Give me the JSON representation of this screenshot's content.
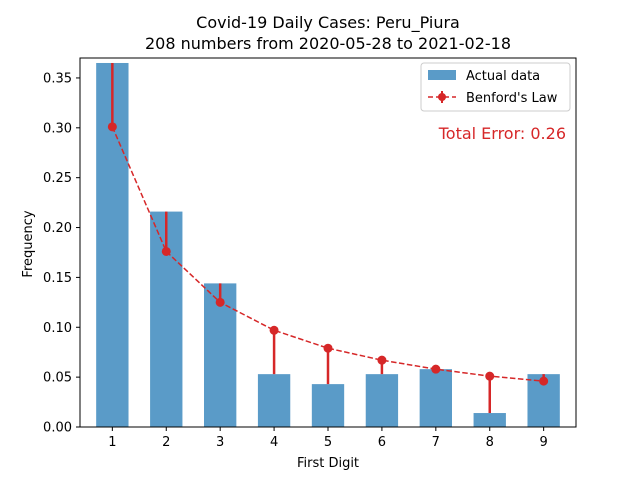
{
  "chart_data": {
    "type": "bar",
    "title_line1": "Covid-19 Daily Cases: Peru_Piura",
    "title_line2": "208 numbers from 2020-05-28 to 2021-02-18",
    "xlabel": "First Digit",
    "ylabel": "Frequency",
    "categories": [
      "1",
      "2",
      "3",
      "4",
      "5",
      "6",
      "7",
      "8",
      "9"
    ],
    "x": [
      1,
      2,
      3,
      4,
      5,
      6,
      7,
      8,
      9
    ],
    "ylim": [
      0,
      0.37
    ],
    "yticks": [
      0.0,
      0.05,
      0.1,
      0.15,
      0.2,
      0.25,
      0.3,
      0.35
    ],
    "ytick_labels": [
      "0.00",
      "0.05",
      "0.10",
      "0.15",
      "0.20",
      "0.25",
      "0.30",
      "0.35"
    ],
    "series": [
      {
        "name": "Actual data",
        "kind": "bar",
        "color": "#5a9bc8",
        "values": [
          0.365,
          0.216,
          0.144,
          0.053,
          0.043,
          0.053,
          0.058,
          0.014,
          0.053
        ]
      },
      {
        "name": "Benford's Law",
        "kind": "line-with-errorbars",
        "color": "#d62728",
        "values": [
          0.301,
          0.176,
          0.125,
          0.097,
          0.079,
          0.067,
          0.058,
          0.051,
          0.046
        ]
      }
    ],
    "annotation": "Total Error: 0.26",
    "annotation_color": "#d62728",
    "legend_position": "top-right",
    "grid": false
  }
}
